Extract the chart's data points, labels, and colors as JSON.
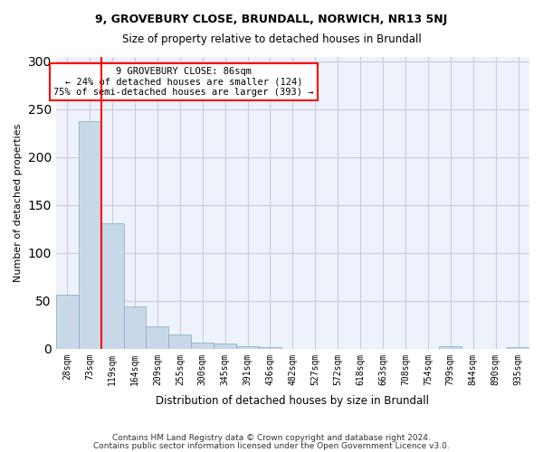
{
  "title1": "9, GROVEBURY CLOSE, BRUNDALL, NORWICH, NR13 5NJ",
  "title2": "Size of property relative to detached houses in Brundall",
  "xlabel": "Distribution of detached houses by size in Brundall",
  "ylabel": "Number of detached properties",
  "footer1": "Contains HM Land Registry data © Crown copyright and database right 2024.",
  "footer2": "Contains public sector information licensed under the Open Government Licence v3.0.",
  "annotation_line1": "9 GROVEBURY CLOSE: 86sqm",
  "annotation_line2": "← 24% of detached houses are smaller (124)",
  "annotation_line3": "75% of semi-detached houses are larger (393) →",
  "bar_values": [
    56,
    238,
    131,
    44,
    23,
    15,
    6,
    5,
    3,
    2,
    0,
    0,
    0,
    0,
    0,
    0,
    0,
    3,
    0,
    0,
    2
  ],
  "bar_color": "#c8d8e8",
  "bar_edge_color": "#7aaad0",
  "bar_labels": [
    "28sqm",
    "73sqm",
    "119sqm",
    "164sqm",
    "209sqm",
    "255sqm",
    "300sqm",
    "345sqm",
    "391sqm",
    "436sqm",
    "482sqm",
    "527sqm",
    "572sqm",
    "618sqm",
    "663sqm",
    "708sqm",
    "754sqm",
    "799sqm",
    "844sqm",
    "890sqm",
    "935sqm"
  ],
  "red_line_x": 1.5,
  "ylim": [
    0,
    305
  ],
  "yticks": [
    0,
    50,
    100,
    150,
    200,
    250,
    300
  ],
  "grid_color": "#ccccdd",
  "bg_color": "#eef2fa"
}
